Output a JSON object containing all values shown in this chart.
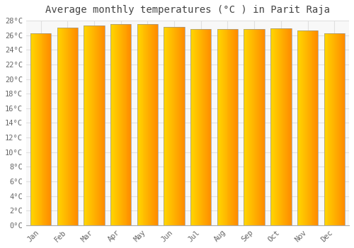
{
  "title": "Average monthly temperatures (°C ) in Parit Raja",
  "months": [
    "Jan",
    "Feb",
    "Mar",
    "Apr",
    "May",
    "Jun",
    "Jul",
    "Aug",
    "Sep",
    "Oct",
    "Nov",
    "Dec"
  ],
  "temperatures": [
    26.3,
    27.0,
    27.3,
    27.5,
    27.5,
    27.1,
    26.8,
    26.8,
    26.8,
    26.9,
    26.6,
    26.3
  ],
  "ylim": [
    0,
    28
  ],
  "yticks": [
    0,
    2,
    4,
    6,
    8,
    10,
    12,
    14,
    16,
    18,
    20,
    22,
    24,
    26,
    28
  ],
  "bar_color_left": "#FFD700",
  "bar_color_right": "#FFA500",
  "bar_color_mid": "#FFB800",
  "background_color": "#FFFFFF",
  "plot_bg_color": "#F8F8F8",
  "grid_color": "#E0E0E0",
  "title_fontsize": 10,
  "tick_fontsize": 7.5,
  "bar_edge_color": "#999999",
  "bar_width": 0.78
}
